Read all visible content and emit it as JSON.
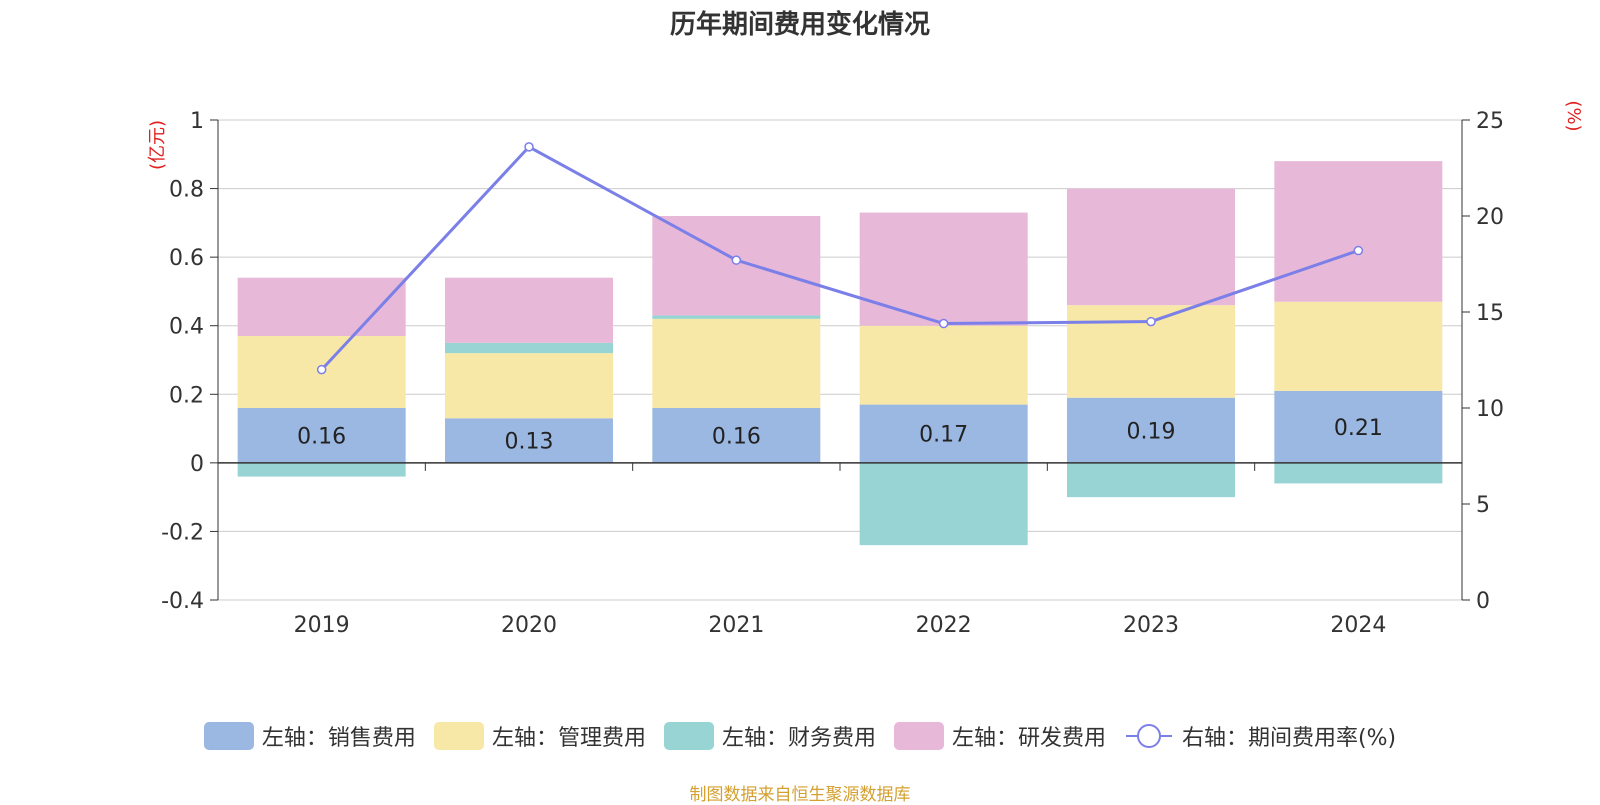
{
  "title": "历年期间费用变化情况",
  "source": "制图数据来自恒生聚源数据库",
  "chart_data": {
    "type": "bar",
    "stacked": true,
    "categories": [
      "2019",
      "2020",
      "2021",
      "2022",
      "2023",
      "2024"
    ],
    "y_left": {
      "unit": "(亿元)",
      "min": -0.4,
      "max": 1,
      "ticks": [
        "-0.4",
        "-0.2",
        "0",
        "0.2",
        "0.4",
        "0.6",
        "0.8",
        "1"
      ]
    },
    "y_right": {
      "unit": "(%)",
      "min": 0,
      "max": 25,
      "ticks": [
        "0",
        "5",
        "10",
        "15",
        "20",
        "25"
      ]
    },
    "series": [
      {
        "name": "左轴：销售费用",
        "color": "#9bb8e2",
        "values": [
          0.16,
          0.13,
          0.16,
          0.17,
          0.19,
          0.21
        ],
        "labels": [
          "0.16",
          "0.13",
          "0.16",
          "0.17",
          "0.19",
          "0.21"
        ]
      },
      {
        "name": "左轴：管理费用",
        "color": "#f8e8a8",
        "values": [
          0.21,
          0.19,
          0.26,
          0.23,
          0.27,
          0.26
        ]
      },
      {
        "name": "左轴：财务费用",
        "color": "#98d4d4",
        "values": [
          -0.04,
          0.03,
          0.01,
          -0.24,
          -0.1,
          -0.06
        ]
      },
      {
        "name": "左轴：研发费用",
        "color": "#e8b8d8",
        "values": [
          0.17,
          0.19,
          0.29,
          0.33,
          0.34,
          0.41
        ]
      }
    ],
    "line": {
      "name": "右轴：期间费用率(%)",
      "color": "#7b7fe8",
      "values": [
        12.0,
        23.6,
        17.7,
        14.4,
        14.5,
        18.2
      ]
    },
    "grid": true,
    "legend_position": "bottom"
  }
}
